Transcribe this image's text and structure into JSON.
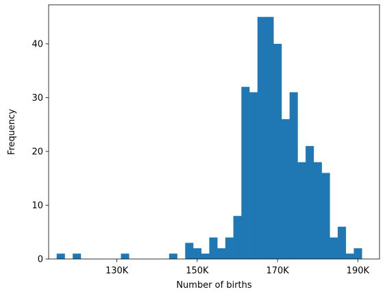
{
  "chart_data": {
    "type": "bar",
    "subtype": "histogram",
    "title": "",
    "xlabel": "Number of births",
    "ylabel": "Frequency",
    "bar_color": "#1f77b4",
    "grid": false,
    "legend": "none",
    "xlim": [
      113000,
      195400
    ],
    "ylim": [
      0,
      47.25
    ],
    "bin_start": 115000,
    "bin_width": 2000,
    "values": [
      1,
      0,
      1,
      0,
      0,
      0,
      0,
      0,
      1,
      0,
      0,
      0,
      0,
      0,
      1,
      0,
      3,
      2,
      1,
      4,
      2,
      4,
      8,
      32,
      31,
      45,
      45,
      40,
      26,
      31,
      18,
      21,
      18,
      16,
      4,
      6,
      1,
      2
    ],
    "x_ticks": [
      {
        "value": 130000,
        "label": "130K"
      },
      {
        "value": 150000,
        "label": "150K"
      },
      {
        "value": 170000,
        "label": "170K"
      },
      {
        "value": 190000,
        "label": "190K"
      }
    ],
    "y_ticks": [
      {
        "value": 0,
        "label": "0"
      },
      {
        "value": 10,
        "label": "10"
      },
      {
        "value": 20,
        "label": "20"
      },
      {
        "value": 30,
        "label": "30"
      },
      {
        "value": 40,
        "label": "40"
      }
    ]
  }
}
